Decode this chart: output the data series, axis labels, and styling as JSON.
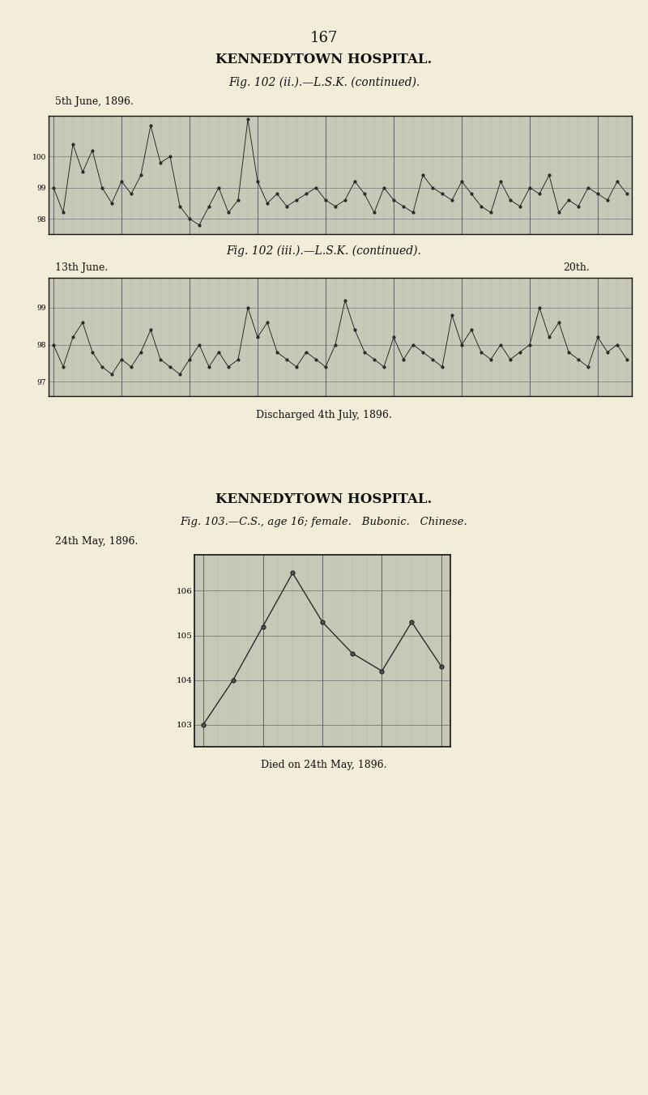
{
  "page_number": "167",
  "bg_color": "#f2edd8",
  "chart_bg_color": "#c8c8b8",
  "title1": "KENNEDYTOWN HOSPITAL.",
  "fig_label1": "Fig. 102 (ii.).—L.S.K. (continued).",
  "date_label1": "5th June, 1896.",
  "chart1_yticks": [
    98,
    99,
    100
  ],
  "chart1_ylim": [
    97.5,
    101.3
  ],
  "chart1_y_values": [
    99.0,
    98.2,
    100.4,
    99.5,
    100.2,
    99.0,
    98.5,
    99.2,
    98.8,
    99.4,
    101.0,
    99.8,
    100.0,
    98.4,
    98.0,
    97.8,
    98.4,
    99.0,
    98.2,
    98.6,
    101.2,
    99.2,
    98.5,
    98.8,
    98.4,
    98.6,
    98.8,
    99.0,
    98.6,
    98.4,
    98.6,
    99.2,
    98.8,
    98.2,
    99.0,
    98.6,
    98.4,
    98.2,
    99.4,
    99.0,
    98.8,
    98.6,
    99.2,
    98.8,
    98.4,
    98.2,
    99.2,
    98.6,
    98.4,
    99.0,
    98.8,
    99.4,
    98.2,
    98.6,
    98.4,
    99.0,
    98.8,
    98.6,
    99.2,
    98.8
  ],
  "fig_label2": "Fig. 102 (iii.).—L.S.K. (continued).",
  "date_label2_left": "13th June.",
  "date_label2_right": "20th.",
  "chart2_yticks": [
    97,
    98,
    99
  ],
  "chart2_ylim": [
    96.6,
    99.8
  ],
  "chart2_y_values": [
    98.0,
    97.4,
    98.2,
    98.6,
    97.8,
    97.4,
    97.2,
    97.6,
    97.4,
    97.8,
    98.4,
    97.6,
    97.4,
    97.2,
    97.6,
    98.0,
    97.4,
    97.8,
    97.4,
    97.6,
    99.0,
    98.2,
    98.6,
    97.8,
    97.6,
    97.4,
    97.8,
    97.6,
    97.4,
    98.0,
    99.2,
    98.4,
    97.8,
    97.6,
    97.4,
    98.2,
    97.6,
    98.0,
    97.8,
    97.6,
    97.4,
    98.8,
    98.0,
    98.4,
    97.8,
    97.6,
    98.0,
    97.6,
    97.8,
    98.0,
    99.0,
    98.2,
    98.6,
    97.8,
    97.6,
    97.4,
    98.2,
    97.8,
    98.0,
    97.6
  ],
  "discharged_label": "Discharged 4th July, 1896.",
  "title3": "KENNEDYTOWN HOSPITAL.",
  "fig_label3": "Fig. 103.—C.S., age 16; female.   Bubonic.   Chinese.",
  "date_label3": "24th May, 1896.",
  "chart3_yticks": [
    103,
    104,
    105,
    106
  ],
  "chart3_ylim": [
    102.5,
    106.8
  ],
  "chart3_x_values": [
    0,
    1,
    2,
    3,
    4,
    5,
    6,
    7,
    8
  ],
  "chart3_y_values": [
    103.0,
    104.0,
    105.2,
    106.4,
    105.3,
    104.6,
    104.2,
    105.3,
    104.3
  ],
  "died_label": "Died on 24th May, 1896."
}
